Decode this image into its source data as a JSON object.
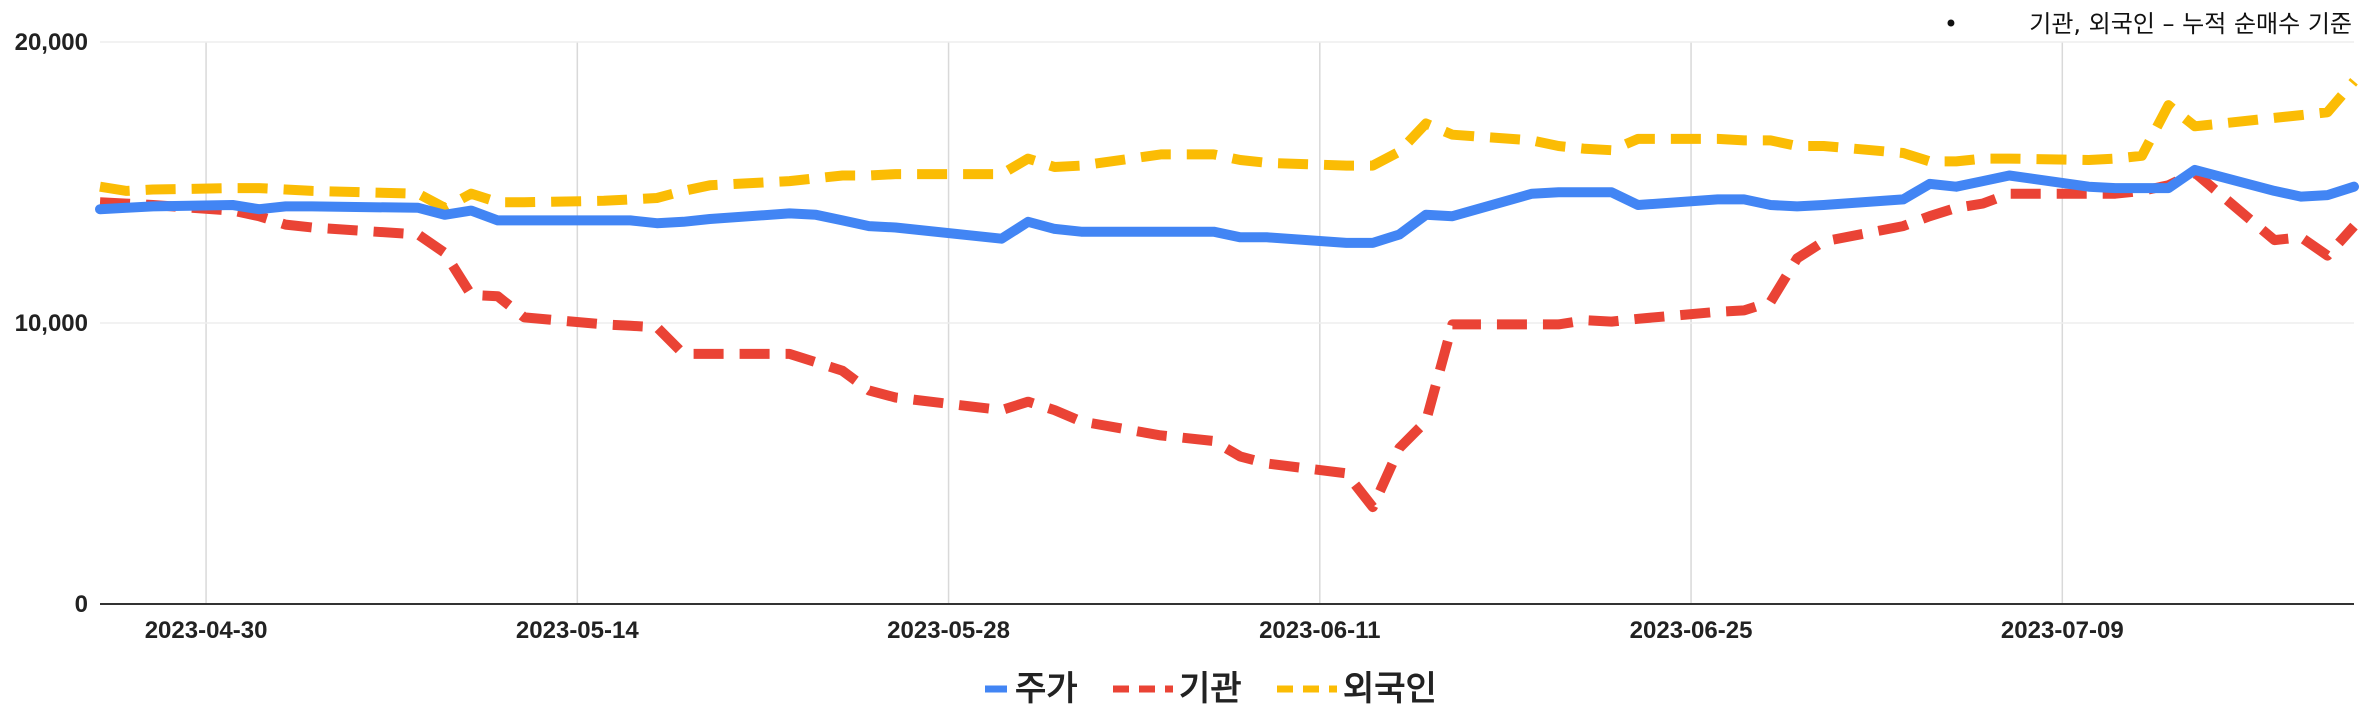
{
  "note": {
    "bullet": "•",
    "text": "기관, 외국인 – 누적 순매수 기준"
  },
  "legend": {
    "items": [
      {
        "name": "주가",
        "color": "#4285F4",
        "dash": "solid"
      },
      {
        "name": "기관",
        "color": "#EA4335",
        "dash": "dashed"
      },
      {
        "name": "외국인",
        "color": "#FBBC04",
        "dash": "dashed"
      }
    ]
  },
  "chart_data": {
    "type": "line",
    "title": "",
    "xlabel": "",
    "ylabel": "",
    "ylim": [
      0,
      20000
    ],
    "y_ticks": [
      {
        "value": 0,
        "label": "0"
      },
      {
        "value": 10000,
        "label": "10,000"
      },
      {
        "value": 20000,
        "label": "20,000"
      }
    ],
    "x_range": [
      "2023-04-26",
      "2023-07-20"
    ],
    "x_ticks": [
      "2023-04-30",
      "2023-05-14",
      "2023-05-28",
      "2023-06-11",
      "2023-06-25",
      "2023-07-09"
    ],
    "grid": {
      "vertical": true,
      "horizontal": true
    },
    "legend_position": "bottom-center",
    "x": [
      "2023-04-26",
      "2023-04-27",
      "2023-04-28",
      "2023-05-01",
      "2023-05-02",
      "2023-05-03",
      "2023-05-04",
      "2023-05-08",
      "2023-05-09",
      "2023-05-10",
      "2023-05-11",
      "2023-05-12",
      "2023-05-15",
      "2023-05-16",
      "2023-05-17",
      "2023-05-18",
      "2023-05-19",
      "2023-05-22",
      "2023-05-23",
      "2023-05-24",
      "2023-05-25",
      "2023-05-26",
      "2023-05-30",
      "2023-05-31",
      "2023-06-01",
      "2023-06-02",
      "2023-06-05",
      "2023-06-07",
      "2023-06-08",
      "2023-06-09",
      "2023-06-12",
      "2023-06-13",
      "2023-06-14",
      "2023-06-15",
      "2023-06-16",
      "2023-06-19",
      "2023-06-20",
      "2023-06-21",
      "2023-06-22",
      "2023-06-23",
      "2023-06-26",
      "2023-06-27",
      "2023-06-28",
      "2023-06-29",
      "2023-06-30",
      "2023-07-03",
      "2023-07-04",
      "2023-07-05",
      "2023-07-06",
      "2023-07-07",
      "2023-07-10",
      "2023-07-11",
      "2023-07-12",
      "2023-07-13",
      "2023-07-14",
      "2023-07-17",
      "2023-07-18",
      "2023-07-19",
      "2023-07-20"
    ],
    "series": [
      {
        "name": "주가",
        "values": [
          14050,
          14100,
          14150,
          14200,
          14050,
          14150,
          14150,
          14100,
          13850,
          14000,
          13650,
          13650,
          13650,
          13650,
          13550,
          13600,
          13700,
          13900,
          13850,
          13650,
          13450,
          13400,
          13000,
          13600,
          13350,
          13250,
          13250,
          13250,
          13050,
          13050,
          12850,
          12850,
          13150,
          13850,
          13800,
          14600,
          14650,
          14650,
          14650,
          14200,
          14400,
          14400,
          14200,
          14150,
          14200,
          14400,
          14950,
          14850,
          15050,
          15250,
          14850,
          14800,
          14800,
          14800,
          15450,
          14700,
          14500,
          14550,
          14850
        ]
      },
      {
        "name": "기관",
        "values": [
          14300,
          14250,
          14200,
          14000,
          13800,
          13500,
          13400,
          13150,
          12500,
          11000,
          10950,
          10200,
          9950,
          9900,
          9850,
          8900,
          8900,
          8900,
          8600,
          8300,
          7600,
          7350,
          6900,
          7200,
          6900,
          6500,
          6000,
          5800,
          5250,
          5000,
          4650,
          3450,
          5550,
          6500,
          9950,
          9950,
          9950,
          10100,
          10050,
          10150,
          10400,
          10450,
          10750,
          12300,
          12900,
          13450,
          13800,
          14100,
          14250,
          14600,
          14600,
          14600,
          14700,
          14900,
          15350,
          12950,
          13050,
          12400,
          13450
        ]
      },
      {
        "name": "외국인",
        "values": [
          14850,
          14700,
          14750,
          14800,
          14800,
          14750,
          14700,
          14600,
          14100,
          14600,
          14300,
          14300,
          14350,
          14400,
          14450,
          14700,
          14900,
          15050,
          15150,
          15250,
          15250,
          15300,
          15300,
          15850,
          15550,
          15600,
          16000,
          16000,
          15800,
          15700,
          15600,
          15600,
          16100,
          17100,
          16700,
          16500,
          16300,
          16200,
          16150,
          16550,
          16550,
          16500,
          16500,
          16300,
          16300,
          16050,
          15750,
          15750,
          15850,
          15850,
          15800,
          15850,
          15950,
          17750,
          17000,
          17300,
          17400,
          17500,
          18600
        ]
      }
    ]
  }
}
